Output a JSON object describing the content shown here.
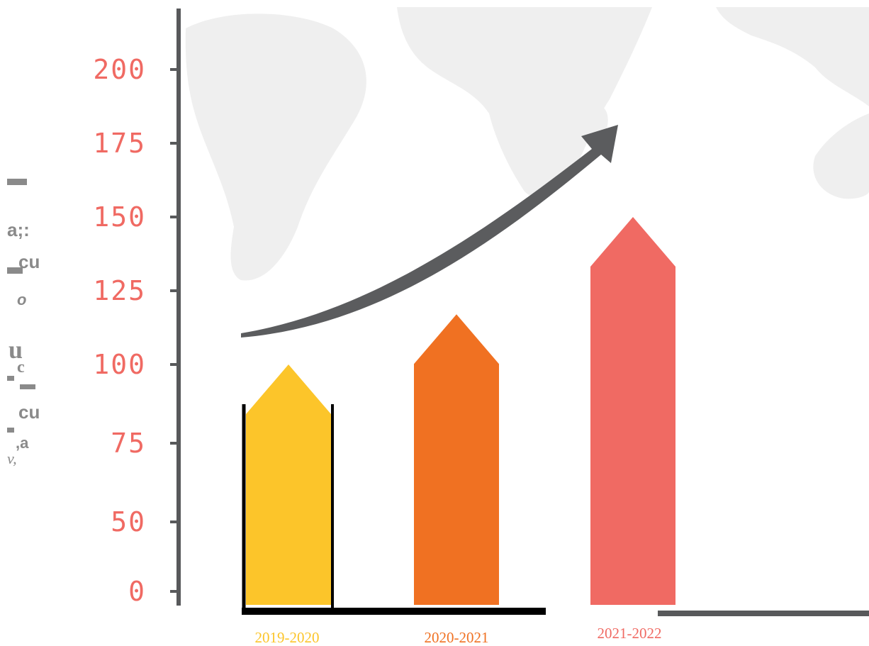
{
  "chart_data": {
    "type": "bar",
    "title": "",
    "xlabel": "",
    "ylabel": "",
    "categories": [
      "2019-2020",
      "2020-2021",
      "2021-2022"
    ],
    "values": [
      100,
      117,
      150
    ],
    "ylim": [
      0,
      200
    ],
    "yticks": [
      0,
      50,
      75,
      100,
      125,
      150,
      175,
      200
    ],
    "grid": false,
    "legend": "none",
    "trend_arrow": true
  },
  "colors": {
    "bars": [
      "#fcc52a",
      "#f07122",
      "#f06a63"
    ],
    "tick_labels": "#f06a63",
    "axis": "#58595b",
    "arrow": "#5b5c5e",
    "map": "#efefef"
  }
}
